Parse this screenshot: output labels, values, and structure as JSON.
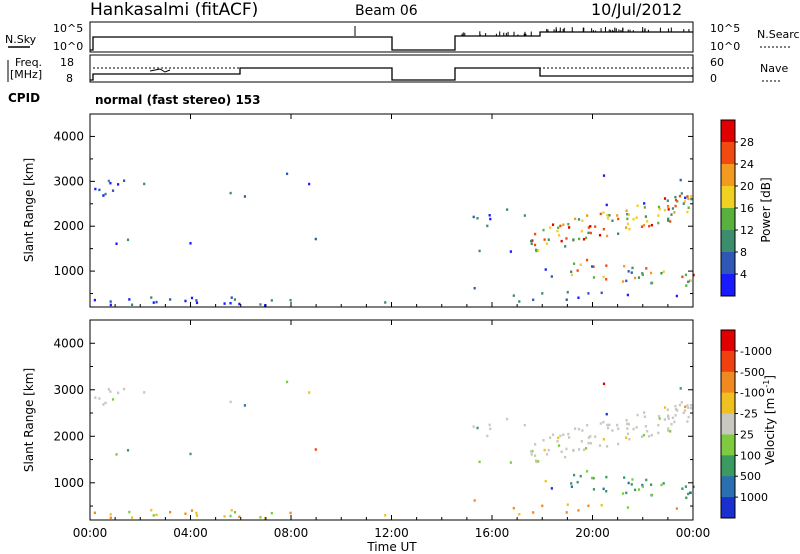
{
  "header": {
    "station": "Hankasalmi (fitACF)",
    "beam": "Beam 06",
    "date": "10/Jul/2012",
    "cpid_label": "CPID",
    "cpid_value": "normal (fast stereo) 153"
  },
  "param_panels": {
    "nsky": {
      "left_label": "N.Sky",
      "left_ticks": [
        "10^5",
        "10^0"
      ],
      "right_label": "N.Search",
      "right_ticks": [
        "10^5",
        "10^0"
      ]
    },
    "freq": {
      "left_label_1": "Freq.",
      "left_label_2": "[MHz]",
      "left_ticks": [
        "18",
        "8"
      ],
      "right_label": "Nave",
      "right_ticks": [
        "60",
        "0"
      ]
    }
  },
  "chart_data": [
    {
      "type": "heatmap",
      "name": "power",
      "ylabel": "Slant Range [km]",
      "yticks": [
        "1000",
        "2000",
        "3000",
        "4000"
      ],
      "ylim": [
        200,
        4500
      ],
      "xlim_hours": [
        0,
        24
      ],
      "colorbar_label": "Power [dB]",
      "colorbar_ticks": [
        "4",
        "8",
        "12",
        "16",
        "20",
        "24",
        "28"
      ],
      "colors": [
        "#1a1aff",
        "#2f58b6",
        "#3c8c6e",
        "#58b13c",
        "#f0d020",
        "#f59a20",
        "#f04a10",
        "#e00000"
      ],
      "data_gap_hours": [
        12.0,
        14.5
      ]
    },
    {
      "type": "heatmap",
      "name": "velocity",
      "ylabel": "Slant Range [km]",
      "yticks": [
        "1000",
        "2000",
        "3000",
        "4000"
      ],
      "ylim": [
        200,
        4500
      ],
      "xlim_hours": [
        0,
        24
      ],
      "colorbar_label": "Velocity [m s",
      "colorbar_unit_sup": "-1",
      "colorbar_unit_end": "]",
      "colorbar_ticks": [
        "1000",
        "500",
        "100",
        "25",
        "-25",
        "-100",
        "-500",
        "-1000"
      ],
      "colors": [
        "#1a2fd0",
        "#2a6fb0",
        "#3a9a60",
        "#7ecb40",
        "#c8c8c0",
        "#f0c020",
        "#f08a20",
        "#f04010",
        "#e00000"
      ],
      "data_gap_hours": [
        12.0,
        14.5
      ]
    }
  ],
  "xaxis": {
    "ticks": [
      "00:00",
      "04:00",
      "08:00",
      "12:00",
      "16:00",
      "20:00",
      "00:00"
    ],
    "label": "Time UT"
  }
}
